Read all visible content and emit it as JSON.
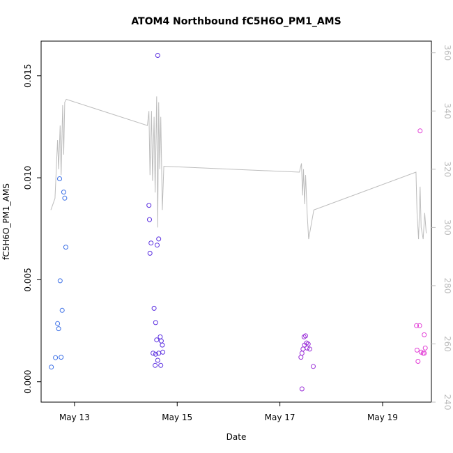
{
  "chart_data": {
    "type": "scatter",
    "title": "ATOM4 Northbound fC5H6O_PM1_AMS",
    "xlabel": "Date",
    "ylabel": "fC5H6O_PM1_AMS",
    "x_ticks": [
      "May 13",
      "May 15",
      "May 17",
      "May 19"
    ],
    "x_tick_days": [
      13,
      15,
      17,
      19
    ],
    "xlim_days": [
      12.35,
      19.95
    ],
    "ylim": [
      -0.001,
      0.0167
    ],
    "y_ticks": [
      "0.000",
      "0.005",
      "0.010",
      "0.015"
    ],
    "y_tick_values": [
      0.0,
      0.005,
      0.01,
      0.015
    ],
    "y2lim": [
      240,
      364
    ],
    "y2_ticks": [
      "240",
      "260",
      "280",
      "300",
      "320",
      "340",
      "360"
    ],
    "y2_tick_values": [
      240,
      260,
      280,
      300,
      320,
      340,
      360
    ],
    "grid": false,
    "legend": "none",
    "colors": {
      "points_early": "#3b6fe6",
      "points_mid": "#5a2ee0",
      "points_late": "#9a2fd8",
      "points_end": "#e23fd6",
      "line": "#bdbdbd",
      "axis": "#000000"
    },
    "points": [
      [
        12.55,
        0.00072,
        "#3b6fe6"
      ],
      [
        12.63,
        0.00118,
        "#3b6fe6"
      ],
      [
        12.67,
        0.00285,
        "#3b6fe6"
      ],
      [
        12.69,
        0.0026,
        "#3b6fe6"
      ],
      [
        12.71,
        0.00995,
        "#3b6fe6"
      ],
      [
        12.72,
        0.00495,
        "#3b6fe6"
      ],
      [
        12.74,
        0.0012,
        "#3b6fe6"
      ],
      [
        12.76,
        0.0035,
        "#3b6fe6"
      ],
      [
        12.79,
        0.0093,
        "#3b6fe6"
      ],
      [
        12.81,
        0.009,
        "#3b6fe6"
      ],
      [
        12.83,
        0.0066,
        "#3b6fe6"
      ],
      [
        14.45,
        0.00865,
        "#5a2ee0"
      ],
      [
        14.46,
        0.00795,
        "#5a2ee0"
      ],
      [
        14.49,
        0.0068,
        "#5a2ee0"
      ],
      [
        14.47,
        0.0063,
        "#5a2ee0"
      ],
      [
        14.55,
        0.0036,
        "#5a2ee0"
      ],
      [
        14.58,
        0.0029,
        "#5a2ee0"
      ],
      [
        14.61,
        0.0067,
        "#5a2ee0"
      ],
      [
        14.64,
        0.007,
        "#5a2ee0"
      ],
      [
        14.62,
        0.016,
        "#5a2ee0"
      ],
      [
        14.6,
        0.00205,
        "#5a2ee0"
      ],
      [
        14.67,
        0.0022,
        "#5a2ee0"
      ],
      [
        14.69,
        0.002,
        "#5a2ee0"
      ],
      [
        14.71,
        0.0018,
        "#5a2ee0"
      ],
      [
        14.53,
        0.0014,
        "#5a2ee0"
      ],
      [
        14.58,
        0.00135,
        "#5a2ee0"
      ],
      [
        14.64,
        0.0014,
        "#5a2ee0"
      ],
      [
        14.72,
        0.00145,
        "#5a2ee0"
      ],
      [
        14.62,
        0.00105,
        "#5a2ee0"
      ],
      [
        14.57,
        0.0008,
        "#5a2ee0"
      ],
      [
        14.68,
        0.0008,
        "#5a2ee0"
      ],
      [
        17.43,
        -0.00035,
        "#9a2fd8"
      ],
      [
        17.47,
        0.0022,
        "#9a2fd8"
      ],
      [
        17.5,
        0.00225,
        "#9a2fd8"
      ],
      [
        17.52,
        0.0019,
        "#9a2fd8"
      ],
      [
        17.48,
        0.0018,
        "#9a2fd8"
      ],
      [
        17.55,
        0.00185,
        "#9a2fd8"
      ],
      [
        17.45,
        0.0016,
        "#9a2fd8"
      ],
      [
        17.53,
        0.00165,
        "#9a2fd8"
      ],
      [
        17.58,
        0.0016,
        "#9a2fd8"
      ],
      [
        17.43,
        0.0014,
        "#9a2fd8"
      ],
      [
        17.41,
        0.0012,
        "#9a2fd8"
      ],
      [
        17.65,
        0.00075,
        "#9a2fd8"
      ],
      [
        19.66,
        0.00275,
        "#e23fd6"
      ],
      [
        19.72,
        0.00275,
        "#e23fd6"
      ],
      [
        19.73,
        0.0123,
        "#e23fd6"
      ],
      [
        19.81,
        0.0023,
        "#e23fd6"
      ],
      [
        19.67,
        0.00155,
        "#e23fd6"
      ],
      [
        19.75,
        0.00145,
        "#e23fd6"
      ],
      [
        19.83,
        0.00165,
        "#e23fd6"
      ],
      [
        19.79,
        0.0014,
        "#e23fd6"
      ],
      [
        19.81,
        0.0014,
        "#e23fd6"
      ],
      [
        19.69,
        0.001,
        "#e23fd6"
      ]
    ],
    "line_y2": [
      [
        12.54,
        306
      ],
      [
        12.62,
        310
      ],
      [
        12.67,
        330
      ],
      [
        12.69,
        320
      ],
      [
        12.72,
        335
      ],
      [
        12.74,
        318
      ],
      [
        12.77,
        342
      ],
      [
        12.79,
        325
      ],
      [
        12.81,
        343
      ],
      [
        12.84,
        344
      ],
      [
        14.42,
        335
      ],
      [
        14.45,
        340
      ],
      [
        14.47,
        318
      ],
      [
        14.5,
        340
      ],
      [
        14.52,
        316
      ],
      [
        14.55,
        338
      ],
      [
        14.57,
        312
      ],
      [
        14.6,
        345
      ],
      [
        14.62,
        300
      ],
      [
        14.64,
        343
      ],
      [
        14.66,
        320
      ],
      [
        14.68,
        338
      ],
      [
        14.71,
        306
      ],
      [
        14.74,
        321
      ],
      [
        17.38,
        319
      ],
      [
        17.42,
        322
      ],
      [
        17.44,
        311
      ],
      [
        17.46,
        320
      ],
      [
        17.48,
        308
      ],
      [
        17.5,
        318
      ],
      [
        17.53,
        305
      ],
      [
        17.56,
        296
      ],
      [
        17.6,
        300
      ],
      [
        17.66,
        306
      ],
      [
        19.65,
        319
      ],
      [
        19.67,
        305
      ],
      [
        19.7,
        296
      ],
      [
        19.73,
        314
      ],
      [
        19.75,
        300
      ],
      [
        19.79,
        296
      ],
      [
        19.82,
        305
      ],
      [
        19.85,
        298
      ]
    ]
  }
}
